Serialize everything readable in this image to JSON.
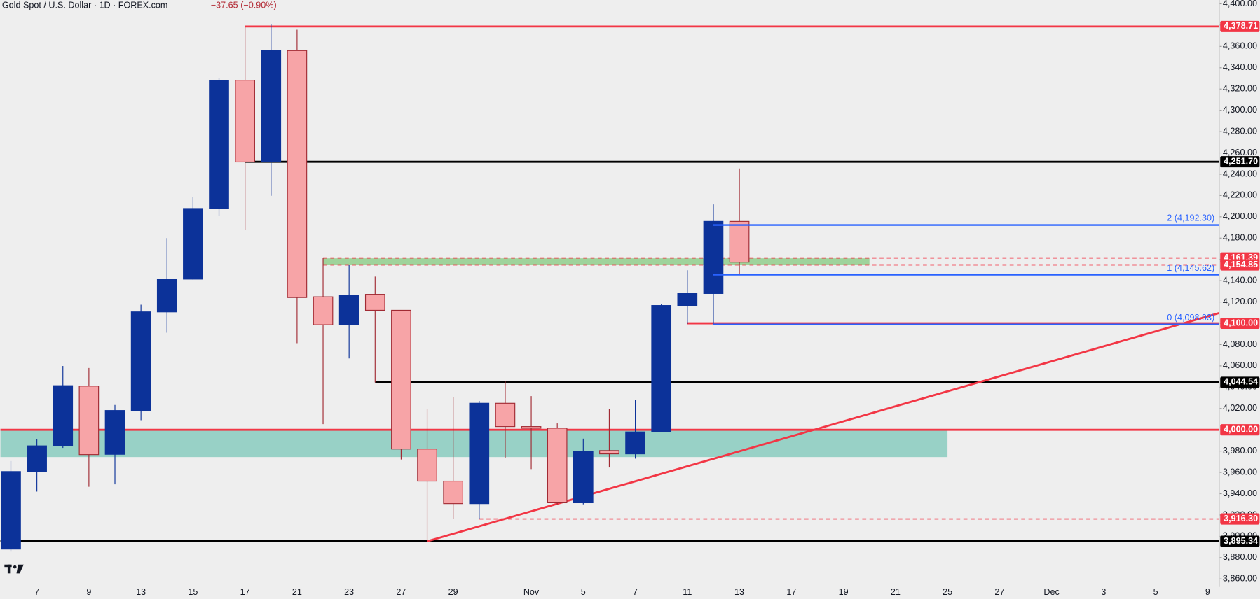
{
  "chart_data": {
    "type": "candlestick",
    "title": "Gold Spot / U.S. Dollar · 1D · FOREX.com",
    "change": "−37.65 (−0.90%)",
    "categories": [
      null,
      "7",
      null,
      "9",
      null,
      "13",
      null,
      "15",
      null,
      "17",
      null,
      "21",
      null,
      "23",
      null,
      "27",
      null,
      "29",
      null,
      null,
      "Nov",
      null,
      "5",
      null,
      "7",
      null,
      "11",
      null,
      "13",
      null,
      "17",
      null,
      "19",
      null,
      "21",
      null,
      "25",
      null,
      "27",
      null,
      "Dec",
      null,
      "3",
      null,
      "5",
      null,
      "9"
    ],
    "open": [
      3888,
      3961,
      3985,
      4041,
      3977,
      4018,
      4110.7,
      4141.5,
      4207.8,
      4328.3,
      4251.5,
      4356.1,
      4124.9,
      4098.6,
      4127.2,
      4112.2,
      3981.9,
      3951.8,
      3930.7,
      4024.9,
      4003,
      4001.5,
      3931.5,
      3980.5,
      3977.4,
      3998,
      4116.7,
      4128,
      4195.7,
      null,
      null,
      null,
      null,
      null,
      null,
      null,
      null,
      null,
      null,
      null,
      null,
      null,
      null,
      null,
      null,
      null,
      null
    ],
    "high": [
      3970.6,
      3991,
      4059.9,
      4058,
      4023.3,
      4117.4,
      4180,
      4218.3,
      4330.5,
      4378.7,
      4381,
      4375.7,
      4161.1,
      4155.1,
      4143.8,
      4112.2,
      4019.6,
      4030.9,
      4027.1,
      4045.9,
      4031.6,
      4006,
      3991.7,
      4019.6,
      4027.9,
      4118.2,
      4149.8,
      4211.6,
      4245.4,
      null,
      null,
      null,
      null,
      null,
      null,
      null,
      null,
      null,
      null,
      null,
      null,
      null,
      null,
      null,
      null,
      null,
      null
    ],
    "low": [
      3885.6,
      3942,
      3983,
      3946.5,
      3948.8,
      4009,
      4091.1,
      4141,
      4201,
      4187.5,
      4219.8,
      4081.3,
      4005.3,
      4067,
      4044.5,
      3972.1,
      3895.3,
      3916.4,
      3916.3,
      3973.6,
      3963.1,
      3930,
      3930,
      3964.6,
      3972.9,
      3998,
      4099.4,
      4098.93,
      4146,
      null,
      null,
      null,
      null,
      null,
      null,
      null,
      null,
      null,
      null,
      null,
      null,
      null,
      null,
      null,
      null,
      null,
      null
    ],
    "close": [
      3960.8,
      3984.9,
      4041.4,
      3976.7,
      4018.1,
      4110.7,
      4141.5,
      4207.8,
      4328.3,
      4251.5,
      4356.1,
      4124.2,
      4098.6,
      4126.5,
      4112.2,
      3981.9,
      3951.8,
      3930.7,
      4024.9,
      4003,
      4001.5,
      3931.5,
      3979.7,
      3977.4,
      3998,
      4116.7,
      4128,
      4195.7,
      4157.4,
      null,
      null,
      null,
      null,
      null,
      null,
      null,
      null,
      null,
      null,
      null,
      null,
      null,
      null,
      null,
      null,
      null,
      null
    ],
    "up_color": "#0c3299",
    "down_color": "#f7a4a7",
    "down_edge": "#a12a33",
    "ylim": [
      3852.4,
      4403.6
    ],
    "yticks": [
      {
        "value": 3860,
        "label": "3,860.00"
      },
      {
        "value": 3880,
        "label": "3,880.00"
      },
      {
        "value": 3900,
        "label": "3,900.00"
      },
      {
        "value": 3920,
        "label": "3,920.00"
      },
      {
        "value": 3940,
        "label": "3,940.00"
      },
      {
        "value": 3960,
        "label": "3,960.00"
      },
      {
        "value": 3980,
        "label": "3,980.00"
      },
      {
        "value": 4000,
        "label": "4,000.00"
      },
      {
        "value": 4020,
        "label": "4,020.00"
      },
      {
        "value": 4040,
        "label": "4,040.00"
      },
      {
        "value": 4060,
        "label": "4,060.00"
      },
      {
        "value": 4080,
        "label": "4,080.00"
      },
      {
        "value": 4100,
        "label": "4,100.00"
      },
      {
        "value": 4120,
        "label": "4,120.00"
      },
      {
        "value": 4140,
        "label": "4,140.00"
      },
      {
        "value": 4160,
        "label": "4,160.00"
      },
      {
        "value": 4180,
        "label": "4,180.00"
      },
      {
        "value": 4200,
        "label": "4,200.00"
      },
      {
        "value": 4220,
        "label": "4,220.00"
      },
      {
        "value": 4240,
        "label": "4,240.00"
      },
      {
        "value": 4260,
        "label": "4,260.00"
      },
      {
        "value": 4280,
        "label": "4,280.00"
      },
      {
        "value": 4300,
        "label": "4,300.00"
      },
      {
        "value": 4320,
        "label": "4,320.00"
      },
      {
        "value": 4340,
        "label": "4,340.00"
      },
      {
        "value": 4360,
        "label": "4,360.00"
      },
      {
        "value": 4380,
        "label": "4,380.00"
      },
      {
        "value": 4400,
        "label": "4,400.00"
      }
    ],
    "zones": [
      {
        "range": [
          3974.4,
          4000
        ],
        "end": 36,
        "color": "#98d1c6"
      },
      {
        "range": [
          4155,
          4161
        ],
        "start": 12,
        "end": 33,
        "color": "#9fd39b"
      }
    ],
    "levels": [
      {
        "value": 4378.71,
        "label": "4,378.71",
        "color": "#f23645",
        "dashed": false,
        "start": 9
      },
      {
        "value": 4251.7,
        "label": "4,251.70",
        "color": "#000000",
        "dashed": false,
        "start": 9
      },
      {
        "value": 4161.39,
        "label": "4,161.39",
        "color": "#f23645",
        "dashed": true,
        "start": 12
      },
      {
        "value": 4154.85,
        "label": "4,154.85",
        "color": "#f23645",
        "dashed": true,
        "start": 12
      },
      {
        "value": 4100.0,
        "label": "4,100.00",
        "color": "#f23645",
        "dashed": false,
        "start": 26
      },
      {
        "value": 4044.54,
        "label": "4,044.54",
        "color": "#000000",
        "dashed": false,
        "start": 14
      },
      {
        "value": 4000.0,
        "label": "4,000.00",
        "color": "#f23645",
        "dashed": false
      },
      {
        "value": 3916.3,
        "label": "3,916.30",
        "color": "#f23645",
        "dashed": true,
        "start": 18
      },
      {
        "value": 3895.34,
        "label": "3,895.34",
        "color": "#000000",
        "dashed": false
      }
    ],
    "fib": [
      {
        "value": 4192.3,
        "label": "2 (4,192.30)"
      },
      {
        "value": 4145.62,
        "label": "1 (4,145.62)"
      },
      {
        "value": 4098.93,
        "label": "0 (4,098.93)"
      }
    ],
    "fib_start": 27,
    "fib_color": "#2962ff",
    "trendline": {
      "x": [
        16,
        46
      ],
      "y": [
        3895.34,
        4106.5
      ],
      "color": "#f23645"
    }
  }
}
